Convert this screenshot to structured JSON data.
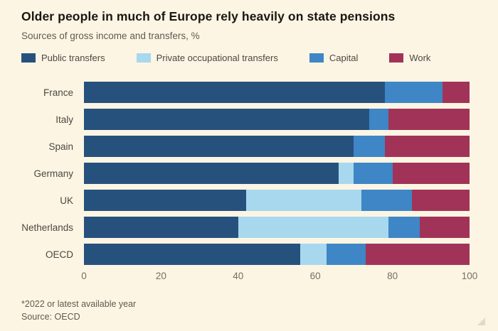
{
  "header": {
    "title": "Older people in much of Europe rely heavily on state pensions",
    "subtitle": "Sources of gross income and transfers, %"
  },
  "chart_data": {
    "type": "bar",
    "orientation": "horizontal",
    "stacked": true,
    "title": "Older people in much of Europe rely heavily on state pensions",
    "subtitle": "Sources of gross income and transfers, %",
    "categories": [
      "France",
      "Italy",
      "Spain",
      "Germany",
      "UK",
      "Netherlands",
      "OECD"
    ],
    "series": [
      {
        "name": "Public transfers",
        "color": "#27517D",
        "values": [
          78,
          74,
          70,
          66,
          42,
          40,
          56
        ]
      },
      {
        "name": "Private occupational transfers",
        "color": "#A8D8EE",
        "values": [
          0,
          0,
          0,
          4,
          30,
          39,
          7
        ]
      },
      {
        "name": "Capital",
        "color": "#3E86C6",
        "values": [
          15,
          5,
          8,
          10,
          13,
          8,
          10
        ]
      },
      {
        "name": "Work",
        "color": "#A23358",
        "values": [
          7,
          21,
          22,
          20,
          15,
          13,
          27
        ]
      }
    ],
    "xlim": [
      0,
      100
    ],
    "x_ticks": [
      0,
      20,
      40,
      60,
      80,
      100
    ],
    "grid": false,
    "legend_position": "top"
  },
  "footer": {
    "note": "*2022 or latest available year",
    "source": "Source: OECD"
  },
  "colors": {
    "background": "#FCF5E3",
    "title_text": "#1A1613",
    "muted_text": "#5F5A52",
    "label_text": "#4B4742",
    "tick_text": "#756E66"
  }
}
